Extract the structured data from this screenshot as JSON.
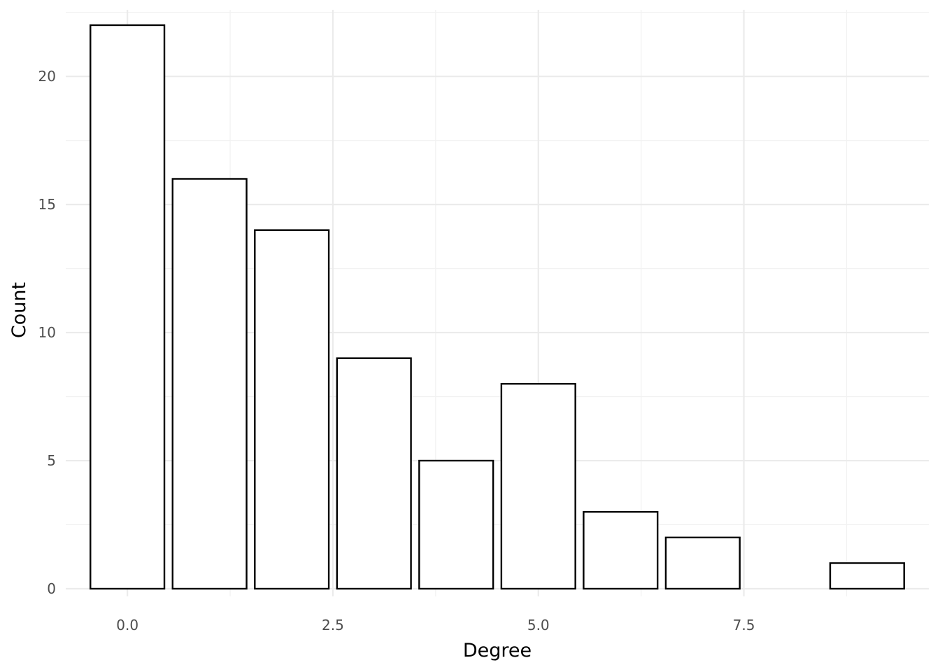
{
  "chart_data": {
    "type": "bar",
    "title": "",
    "xlabel": "Degree",
    "ylabel": "Count",
    "x": [
      0,
      1,
      2,
      3,
      4,
      5,
      6,
      7,
      9
    ],
    "values": [
      22,
      16,
      14,
      9,
      5,
      8,
      3,
      2,
      1
    ],
    "xlim": [
      -0.75,
      9.75
    ],
    "ylim": [
      -0.3,
      22.6
    ],
    "x_ticks": [
      0.0,
      2.5,
      5.0,
      7.5
    ],
    "x_tick_labels": [
      "0.0",
      "2.5",
      "5.0",
      "7.5"
    ],
    "y_ticks": [
      0,
      5,
      10,
      15,
      20
    ],
    "y_tick_labels": [
      "0",
      "5",
      "10",
      "15",
      "20"
    ],
    "grid": true,
    "bar_fill": "#ffffff",
    "bar_stroke": "#000000",
    "legend": "none"
  }
}
